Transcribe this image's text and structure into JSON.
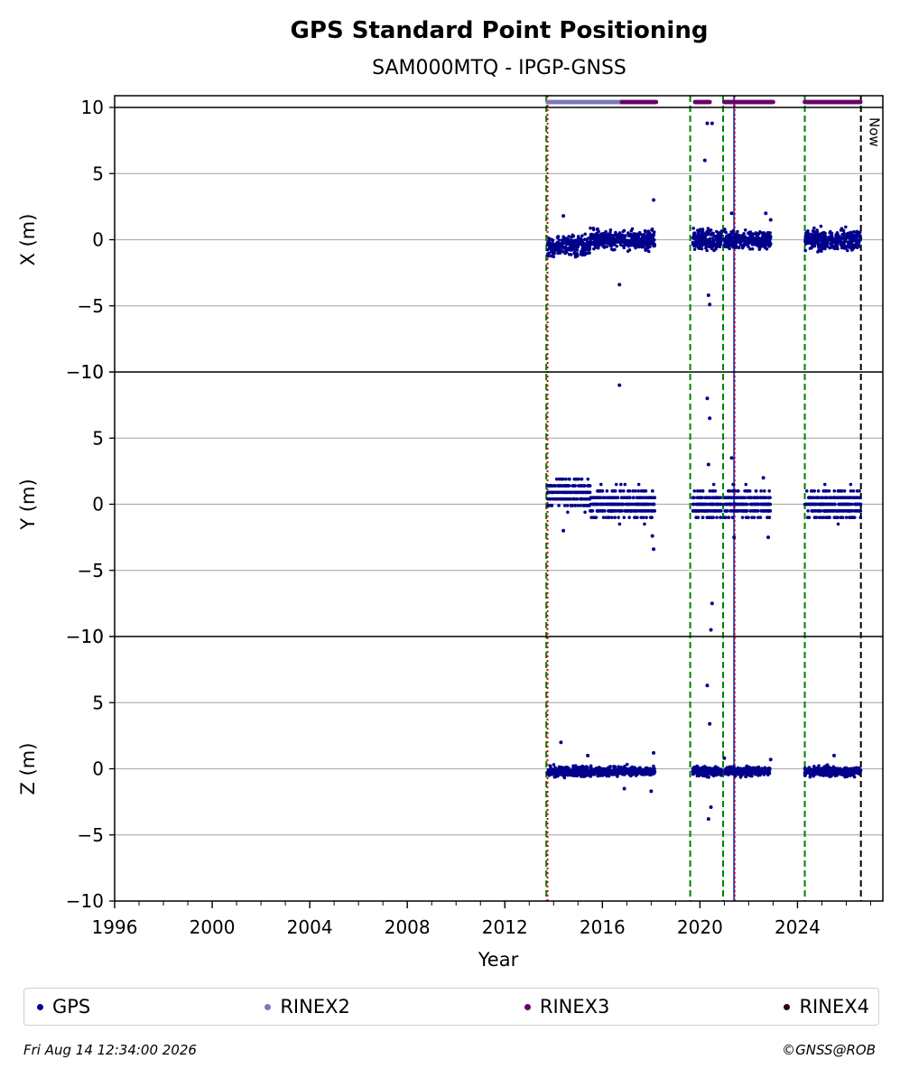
{
  "chart_data": {
    "type": "scatter",
    "title": "GPS Standard Point Positioning",
    "subtitle": "SAM000MTQ - IPGP-GNSS",
    "xlabel": "Year",
    "xlim": [
      1996,
      2027.5
    ],
    "xticks": [
      "1996",
      "2000",
      "2004",
      "2008",
      "2012",
      "2016",
      "2020",
      "2024"
    ],
    "yticks": [
      "10",
      "5",
      "0",
      "−5",
      "−10"
    ],
    "panels": [
      {
        "ylabel": "X (m)",
        "ylim": [
          -10,
          10
        ]
      },
      {
        "ylabel": "Y (m)",
        "ylim": [
          -10,
          10
        ]
      },
      {
        "ylabel": "Z (m)",
        "ylim": [
          -10,
          10
        ]
      }
    ],
    "grid": "horizontal",
    "legend_placement": "bottom",
    "now_label": "Now",
    "now_year": 2026.6,
    "event_lines": [
      {
        "year": 2013.7,
        "color": "#008000",
        "style": "dashed"
      },
      {
        "year": 2013.75,
        "color": "#cc0000",
        "style": "dotted"
      },
      {
        "year": 2019.6,
        "color": "#008000",
        "style": "dashed"
      },
      {
        "year": 2020.95,
        "color": "#008000",
        "style": "dashed"
      },
      {
        "year": 2021.4,
        "color": "#1f3fd0",
        "style": "solid"
      },
      {
        "year": 2021.42,
        "color": "#cc0000",
        "style": "dotted"
      },
      {
        "year": 2024.3,
        "color": "#008000",
        "style": "dashed"
      }
    ],
    "data_segments": [
      {
        "start": 2013.75,
        "end": 2018.15
      },
      {
        "start": 2019.7,
        "end": 2020.9
      },
      {
        "start": 2021.0,
        "end": 2022.9
      },
      {
        "start": 2024.3,
        "end": 2026.6
      }
    ],
    "series": [
      {
        "name": "GPS",
        "color": "#00008b",
        "summary": {
          "X": {
            "center": 0,
            "spread": 0.6
          },
          "Y": {
            "center": 0,
            "spread": 0.9
          },
          "Z": {
            "center": -0.2,
            "spread": 0.3
          }
        },
        "outliers": {
          "X": [
            [
              2014.4,
              1.8
            ],
            [
              2016.7,
              -3.4
            ],
            [
              2018.1,
              3.0
            ],
            [
              2020.3,
              8.8
            ],
            [
              2020.2,
              6.0
            ],
            [
              2020.5,
              8.8
            ],
            [
              2020.4,
              -4.9
            ],
            [
              2020.35,
              -4.2
            ],
            [
              2021.3,
              2.0
            ],
            [
              2022.7,
              2.0
            ],
            [
              2022.9,
              1.5
            ]
          ],
          "Y": [
            [
              2016.7,
              9.0
            ],
            [
              2014.4,
              -2.0
            ],
            [
              2018.1,
              -3.4
            ],
            [
              2018.05,
              -2.4
            ],
            [
              2020.3,
              8.0
            ],
            [
              2020.4,
              6.5
            ],
            [
              2020.35,
              3.0
            ],
            [
              2020.45,
              -9.5
            ],
            [
              2020.5,
              -7.5
            ],
            [
              2021.3,
              3.5
            ],
            [
              2021.4,
              -2.5
            ],
            [
              2022.6,
              2.0
            ],
            [
              2022.8,
              -2.5
            ]
          ],
          "Z": [
            [
              2014.3,
              2.0
            ],
            [
              2015.4,
              1.0
            ],
            [
              2016.9,
              -1.5
            ],
            [
              2018.0,
              -1.7
            ],
            [
              2018.1,
              1.2
            ],
            [
              2020.3,
              6.3
            ],
            [
              2020.4,
              3.4
            ],
            [
              2020.35,
              -3.8
            ],
            [
              2020.45,
              -2.9
            ],
            [
              2021.0,
              0.8
            ],
            [
              2022.9,
              0.7
            ],
            [
              2025.5,
              1.0
            ]
          ]
        }
      },
      {
        "name": "RINEX2",
        "color": "#7b79b8",
        "ranges": [
          [
            2013.75,
            2016.8
          ]
        ]
      },
      {
        "name": "RINEX3",
        "color": "#6a006a",
        "ranges": [
          [
            2016.8,
            2018.2
          ],
          [
            2019.8,
            2020.4
          ],
          [
            2021.0,
            2023.0
          ],
          [
            2024.3,
            2026.6
          ]
        ]
      },
      {
        "name": "RINEX4",
        "color": "#2b0018",
        "ranges": []
      }
    ]
  },
  "footer": {
    "timestamp": "Fri Aug 14 12:34:00 2026",
    "copyright": "©GNSS@ROB"
  },
  "legend": [
    {
      "label": "GPS",
      "color": "#00008b"
    },
    {
      "label": "RINEX2",
      "color": "#7b79b8"
    },
    {
      "label": "RINEX3",
      "color": "#6a006a"
    },
    {
      "label": "RINEX4",
      "color": "#2b0018"
    }
  ]
}
